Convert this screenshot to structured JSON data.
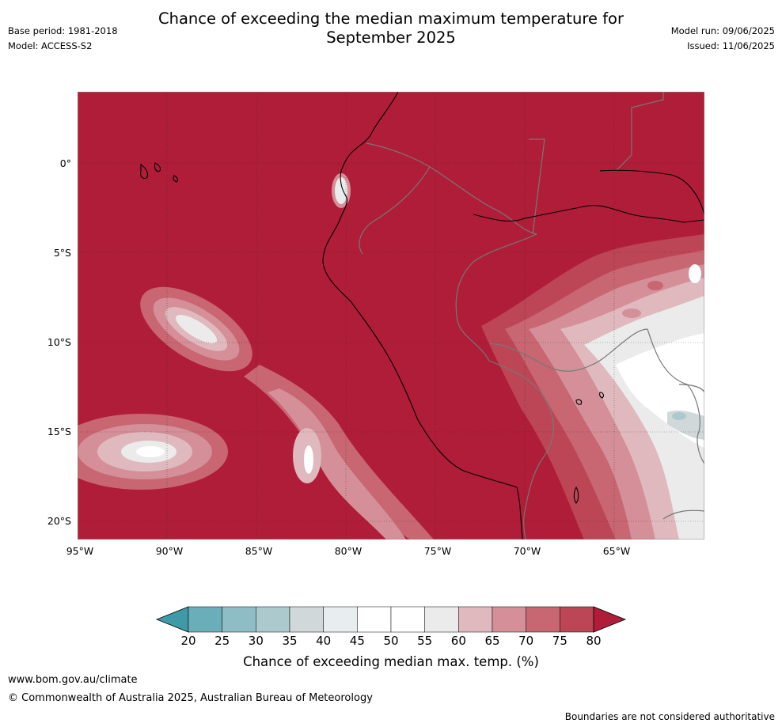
{
  "title_line1": "Chance of exceeding the median maximum temperature for",
  "title_line2": "September 2025",
  "base_period": "Base period: 1981-2018",
  "model": "Model: ACCESS-S2",
  "model_run": "Model run: 09/06/2025",
  "issued": "Issued: 11/06/2025",
  "lat_labels": [
    "0°",
    "5°S",
    "10°S",
    "15°S",
    "20°S"
  ],
  "lon_labels": [
    "95°W",
    "90°W",
    "85°W",
    "80°W",
    "75°W",
    "70°W",
    "65°W"
  ],
  "colorbar": {
    "title": "Chance of exceeding median max. temp. (%)",
    "ticks": [
      "20",
      "25",
      "30",
      "35",
      "40",
      "45",
      "50",
      "55",
      "60",
      "65",
      "70",
      "75",
      "80"
    ],
    "colors": [
      "#3f9aa8",
      "#6aaeb9",
      "#8ebdc6",
      "#acc9cd",
      "#d0d8da",
      "#e8eef0",
      "#ffffff",
      "#ffffff",
      "#ebebeb",
      "#e0b9bf",
      "#d48f98",
      "#c86672",
      "#bd4656",
      "#b01d38"
    ]
  },
  "website": "www.bom.gov.au/climate",
  "copyright": "© Commonwealth of Australia 2025, Australian Bureau of Meteorology",
  "disclaimer": "Boundaries are not considered authoritative"
}
